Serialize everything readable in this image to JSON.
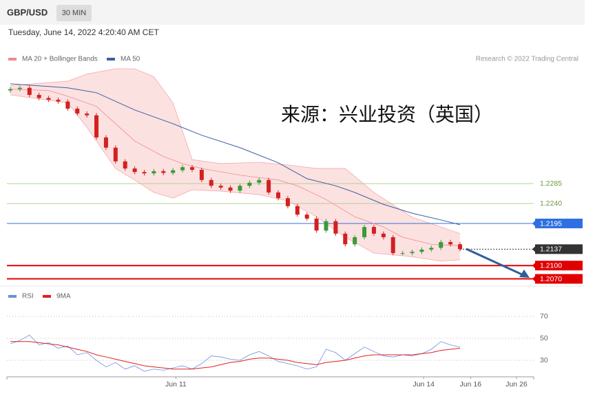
{
  "header": {
    "symbol": "GBP/USD",
    "interval": "30 MIN",
    "datetime": "Tuesday, June 14, 2022 4:20:40 AM CET",
    "source": "Research © 2022 Trading Central",
    "annotation": "来源：兴业投资（英国）"
  },
  "chart_data": [
    {
      "type": "candlestick",
      "xlim": [
        0,
        54.7
      ],
      "ylim": [
        1.206,
        1.2544
      ],
      "open": [
        1.2495,
        1.2498,
        1.2501,
        1.2485,
        1.2478,
        1.2474,
        1.247,
        1.2454,
        1.2443,
        1.2439,
        1.2389,
        1.2366,
        1.2335,
        1.2319,
        1.2311,
        1.2308,
        1.2313,
        1.2309,
        1.2315,
        1.2322,
        1.2316,
        1.2293,
        1.228,
        1.2276,
        1.2269,
        1.228,
        1.2287,
        1.2293,
        1.2265,
        1.2252,
        1.2234,
        1.2215,
        1.2206,
        1.2179,
        1.22,
        1.2172,
        1.2148,
        1.2164,
        1.2187,
        1.2172,
        1.2164,
        1.2128,
        1.2128,
        1.2131,
        1.2136,
        1.214,
        1.2153,
        1.2148
      ],
      "high": [
        1.2503,
        1.2506,
        1.2506,
        1.249,
        1.2483,
        1.2479,
        1.2475,
        1.2459,
        1.2448,
        1.2444,
        1.2394,
        1.2371,
        1.234,
        1.2324,
        1.2316,
        1.2318,
        1.2318,
        1.232,
        1.2327,
        1.2327,
        1.2321,
        1.2298,
        1.2285,
        1.2281,
        1.2285,
        1.2292,
        1.2298,
        1.2298,
        1.227,
        1.2257,
        1.2239,
        1.222,
        1.2211,
        1.2205,
        1.2205,
        1.2177,
        1.2169,
        1.2192,
        1.2192,
        1.2177,
        1.2169,
        1.2133,
        1.2136,
        1.2141,
        1.2145,
        1.2158,
        1.2158,
        1.2153
      ],
      "low": [
        1.249,
        1.2493,
        1.248,
        1.2473,
        1.2469,
        1.2465,
        1.2449,
        1.2438,
        1.2434,
        1.2384,
        1.2361,
        1.233,
        1.2314,
        1.2306,
        1.2303,
        1.2303,
        1.2304,
        1.2304,
        1.231,
        1.2311,
        1.2288,
        1.2275,
        1.2271,
        1.2264,
        1.2264,
        1.2275,
        1.2282,
        1.226,
        1.2247,
        1.2229,
        1.221,
        1.2201,
        1.2174,
        1.2174,
        1.2167,
        1.2143,
        1.2143,
        1.2159,
        1.2167,
        1.2159,
        1.2123,
        1.2123,
        1.2123,
        1.2126,
        1.2131,
        1.2135,
        1.2143,
        1.2132
      ],
      "close": [
        1.2498,
        1.2501,
        1.2485,
        1.2478,
        1.2474,
        1.247,
        1.2454,
        1.2443,
        1.2439,
        1.2389,
        1.2366,
        1.2335,
        1.2319,
        1.2311,
        1.2308,
        1.2313,
        1.2309,
        1.2315,
        1.2322,
        1.2316,
        1.2293,
        1.228,
        1.2276,
        1.2269,
        1.228,
        1.2287,
        1.2293,
        1.2265,
        1.2252,
        1.2234,
        1.2215,
        1.2206,
        1.2179,
        1.22,
        1.2172,
        1.2148,
        1.2164,
        1.2187,
        1.2172,
        1.2164,
        1.2128,
        1.2128,
        1.2131,
        1.2136,
        1.214,
        1.2153,
        1.2148,
        1.2137
      ],
      "up_color": "#3a9a3a",
      "down_color": "#d42020",
      "bands": {
        "color": "#f7a8a8",
        "x": [
          0,
          6,
          8,
          11,
          13,
          15,
          17,
          19,
          22,
          26,
          29,
          32,
          35,
          38,
          42,
          45,
          47
        ],
        "upper": [
          1.2506,
          1.2516,
          1.2532,
          1.2544,
          1.2544,
          1.2526,
          1.2467,
          1.2339,
          1.233,
          1.2333,
          1.2327,
          1.2319,
          1.2319,
          1.2265,
          1.2209,
          1.2187,
          1.2172
        ],
        "lower": [
          1.2485,
          1.2467,
          1.2412,
          1.2319,
          1.2293,
          1.2265,
          1.2252,
          1.2271,
          1.2268,
          1.226,
          1.2246,
          1.221,
          1.2164,
          1.2128,
          1.212,
          1.211,
          1.2113
        ]
      },
      "series": [
        {
          "name": "MA 20 + Bollinger Bands",
          "color": "#f08a8a",
          "x": [
            0,
            4,
            6,
            9,
            11,
            13,
            16,
            18,
            20,
            24,
            28,
            30,
            33,
            36,
            39,
            41,
            44,
            47
          ],
          "values": [
            1.2498,
            1.2495,
            1.2482,
            1.2459,
            1.242,
            1.2381,
            1.2346,
            1.233,
            1.2319,
            1.2304,
            1.2293,
            1.228,
            1.2249,
            1.221,
            1.2187,
            1.2164,
            1.2148,
            1.2145
          ]
        },
        {
          "name": "MA 50",
          "color": "#3a5fa0",
          "x": [
            0,
            6,
            9,
            13,
            17,
            20,
            24,
            28,
            31,
            34,
            36,
            39,
            42,
            45,
            47
          ],
          "values": [
            1.251,
            1.2501,
            1.249,
            1.2451,
            1.242,
            1.2394,
            1.2366,
            1.2332,
            1.2296,
            1.228,
            1.2265,
            1.2238,
            1.2218,
            1.2203,
            1.2192
          ]
        }
      ],
      "levels": [
        {
          "value": 1.2285,
          "label": "1.2285",
          "color": "#9ccc7a",
          "box": false
        },
        {
          "value": 1.224,
          "label": "1.2240",
          "color": "#9ccc7a",
          "box": false
        },
        {
          "value": 1.2195,
          "label": "1.2195",
          "color": "#2f6fe0",
          "box": true
        },
        {
          "value": 1.2137,
          "label": "1.2137",
          "color": "#333333",
          "box": true,
          "dashed": true
        },
        {
          "value": 1.21,
          "label": "1.2100",
          "color": "#e00000",
          "box": true
        },
        {
          "value": 1.207,
          "label": "1.2070",
          "color": "#e00000",
          "box": true
        }
      ]
    },
    {
      "type": "line",
      "xlim": [
        0,
        54.7
      ],
      "ylim": [
        15.6,
        79.4
      ],
      "yticks": [
        70,
        50,
        30
      ],
      "grid": true,
      "xticks": [
        {
          "value": 17.3,
          "label": "Jun 11"
        },
        {
          "value": 43.2,
          "label": "Jun 14"
        },
        {
          "value": 48.1,
          "label": "Jun 16"
        },
        {
          "value": 52.9,
          "label": "Jun 26"
        }
      ],
      "series": [
        {
          "name": "RSI",
          "color": "#6a8ee0",
          "values": [
            45,
            48,
            53,
            44,
            46,
            41,
            43,
            35,
            37,
            30,
            24,
            28,
            22,
            25,
            20,
            22,
            21,
            23,
            25,
            22,
            27,
            34,
            33,
            31,
            30,
            35,
            38,
            34,
            29,
            27,
            25,
            22,
            24,
            40,
            37,
            30,
            36,
            42,
            38,
            34,
            33,
            35,
            34,
            36,
            40,
            47,
            44,
            42
          ]
        },
        {
          "name": "9MA",
          "color": "#e02020",
          "values": [
            47,
            47,
            47,
            46,
            45,
            44,
            42,
            40,
            38,
            35,
            33,
            31,
            29,
            27,
            25,
            24,
            23,
            22,
            22,
            22,
            23,
            24,
            26,
            28,
            29,
            31,
            32,
            32,
            31,
            30,
            28,
            27,
            26,
            28,
            29,
            30,
            32,
            34,
            35,
            35,
            35,
            35,
            35,
            36,
            37,
            39,
            40,
            41
          ]
        }
      ]
    }
  ]
}
